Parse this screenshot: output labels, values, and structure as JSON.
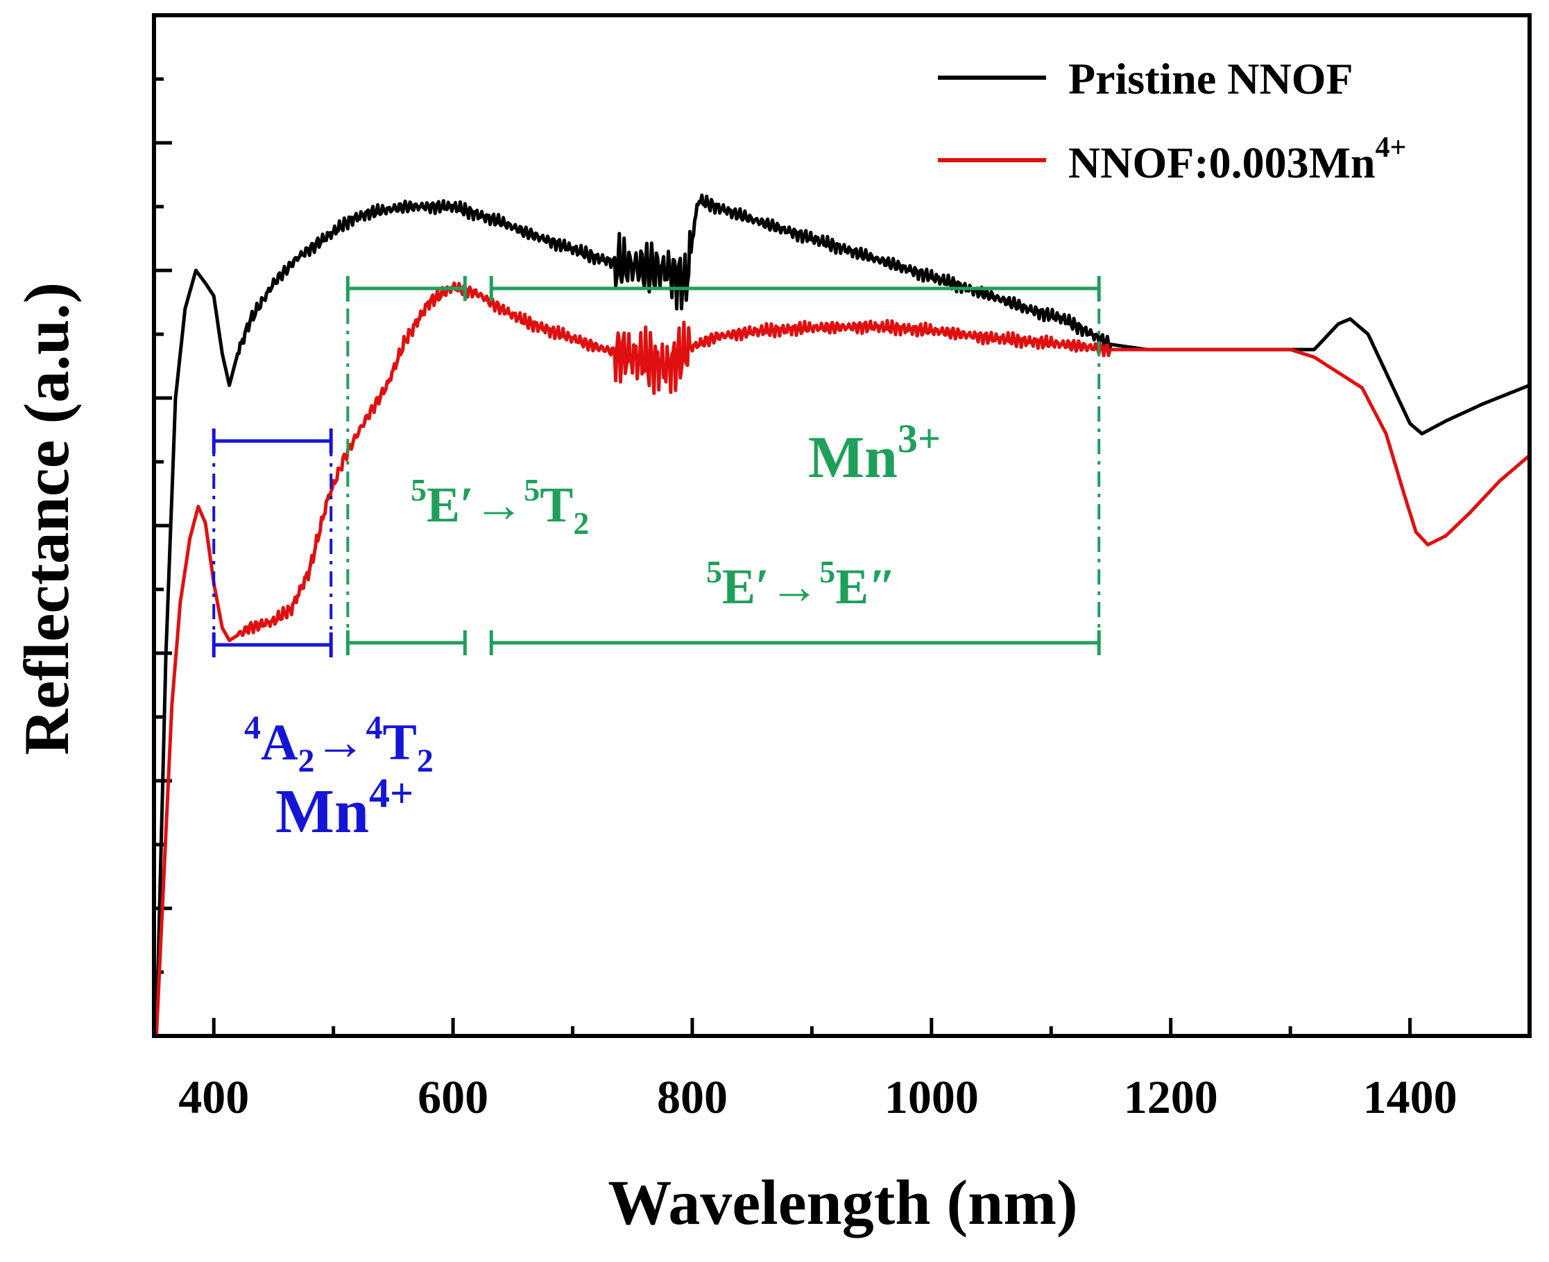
{
  "chart_data": {
    "type": "line",
    "xlabel": "Wavelength (nm)",
    "ylabel": "Reflectance (a.u.)",
    "xlim": [
      350,
      1500
    ],
    "ylim": [
      0,
      8
    ],
    "x_ticks": [
      400,
      600,
      800,
      1000,
      1200,
      1400
    ],
    "y_tick_labels_shown": false,
    "grid": false,
    "legend_position": "top-right",
    "series": [
      {
        "name": "Pristine NNOF",
        "color": "#000000",
        "points": [
          [
            352,
            0.0
          ],
          [
            360,
            3.0
          ],
          [
            368,
            5.0
          ],
          [
            376,
            5.7
          ],
          [
            385,
            6.0
          ],
          [
            393,
            5.9
          ],
          [
            400,
            5.8
          ],
          [
            407,
            5.35
          ],
          [
            413,
            5.1
          ],
          [
            420,
            5.35
          ],
          [
            430,
            5.6
          ],
          [
            450,
            5.9
          ],
          [
            470,
            6.1
          ],
          [
            500,
            6.3
          ],
          [
            515,
            6.4
          ],
          [
            530,
            6.45
          ],
          [
            560,
            6.5
          ],
          [
            600,
            6.5
          ],
          [
            640,
            6.38
          ],
          [
            660,
            6.3
          ],
          [
            690,
            6.2
          ],
          [
            720,
            6.1
          ],
          [
            740,
            6.05
          ],
          [
            760,
            6.02
          ],
          [
            780,
            6.0
          ],
          [
            795,
            5.9
          ],
          [
            800,
            6.25
          ],
          [
            805,
            6.55
          ],
          [
            820,
            6.5
          ],
          [
            850,
            6.4
          ],
          [
            900,
            6.25
          ],
          [
            950,
            6.1
          ],
          [
            1000,
            5.95
          ],
          [
            1050,
            5.8
          ],
          [
            1080,
            5.7
          ],
          [
            1110,
            5.62
          ],
          [
            1130,
            5.52
          ],
          [
            1150,
            5.42
          ],
          [
            1180,
            5.38
          ],
          [
            1250,
            5.38
          ],
          [
            1300,
            5.38
          ],
          [
            1320,
            5.38
          ],
          [
            1340,
            5.58
          ],
          [
            1350,
            5.62
          ],
          [
            1365,
            5.5
          ],
          [
            1385,
            5.1
          ],
          [
            1400,
            4.8
          ],
          [
            1410,
            4.72
          ],
          [
            1430,
            4.82
          ],
          [
            1460,
            4.95
          ],
          [
            1500,
            5.1
          ]
        ]
      },
      {
        "name": "NNOF:0.003Mn⁴⁺",
        "color": "#e01010",
        "points": [
          [
            352,
            0.0
          ],
          [
            358,
            1.2
          ],
          [
            365,
            2.6
          ],
          [
            372,
            3.4
          ],
          [
            380,
            3.9
          ],
          [
            387,
            4.15
          ],
          [
            393,
            4.02
          ],
          [
            400,
            3.55
          ],
          [
            407,
            3.2
          ],
          [
            413,
            3.1
          ],
          [
            430,
            3.2
          ],
          [
            450,
            3.25
          ],
          [
            465,
            3.35
          ],
          [
            480,
            3.65
          ],
          [
            495,
            4.2
          ],
          [
            510,
            4.55
          ],
          [
            525,
            4.8
          ],
          [
            545,
            5.1
          ],
          [
            560,
            5.45
          ],
          [
            580,
            5.75
          ],
          [
            600,
            5.87
          ],
          [
            620,
            5.82
          ],
          [
            640,
            5.7
          ],
          [
            660,
            5.6
          ],
          [
            690,
            5.5
          ],
          [
            720,
            5.4
          ],
          [
            750,
            5.32
          ],
          [
            780,
            5.25
          ],
          [
            800,
            5.4
          ],
          [
            820,
            5.48
          ],
          [
            850,
            5.52
          ],
          [
            900,
            5.55
          ],
          [
            950,
            5.56
          ],
          [
            1000,
            5.53
          ],
          [
            1050,
            5.47
          ],
          [
            1100,
            5.43
          ],
          [
            1150,
            5.38
          ],
          [
            1200,
            5.38
          ],
          [
            1250,
            5.38
          ],
          [
            1300,
            5.38
          ],
          [
            1320,
            5.32
          ],
          [
            1340,
            5.2
          ],
          [
            1360,
            5.08
          ],
          [
            1380,
            4.72
          ],
          [
            1395,
            4.25
          ],
          [
            1405,
            3.95
          ],
          [
            1415,
            3.85
          ],
          [
            1430,
            3.92
          ],
          [
            1450,
            4.1
          ],
          [
            1475,
            4.35
          ],
          [
            1500,
            4.55
          ]
        ]
      }
    ],
    "annotations": {
      "mn4": {
        "label": "Mn⁴⁺",
        "transition": "⁴A₂→⁴T₂",
        "x_range": [
          400,
          498
        ],
        "color": "#1515d6"
      },
      "mn3": {
        "label": "Mn³⁺",
        "color": "#1fa05a",
        "transition_1": {
          "text": "⁵E′→⁵T₂",
          "x_range": [
            512,
            610
          ]
        },
        "transition_2": {
          "text": "⁵E′→⁵E″",
          "x_range": [
            632,
            1140
          ]
        }
      }
    }
  }
}
